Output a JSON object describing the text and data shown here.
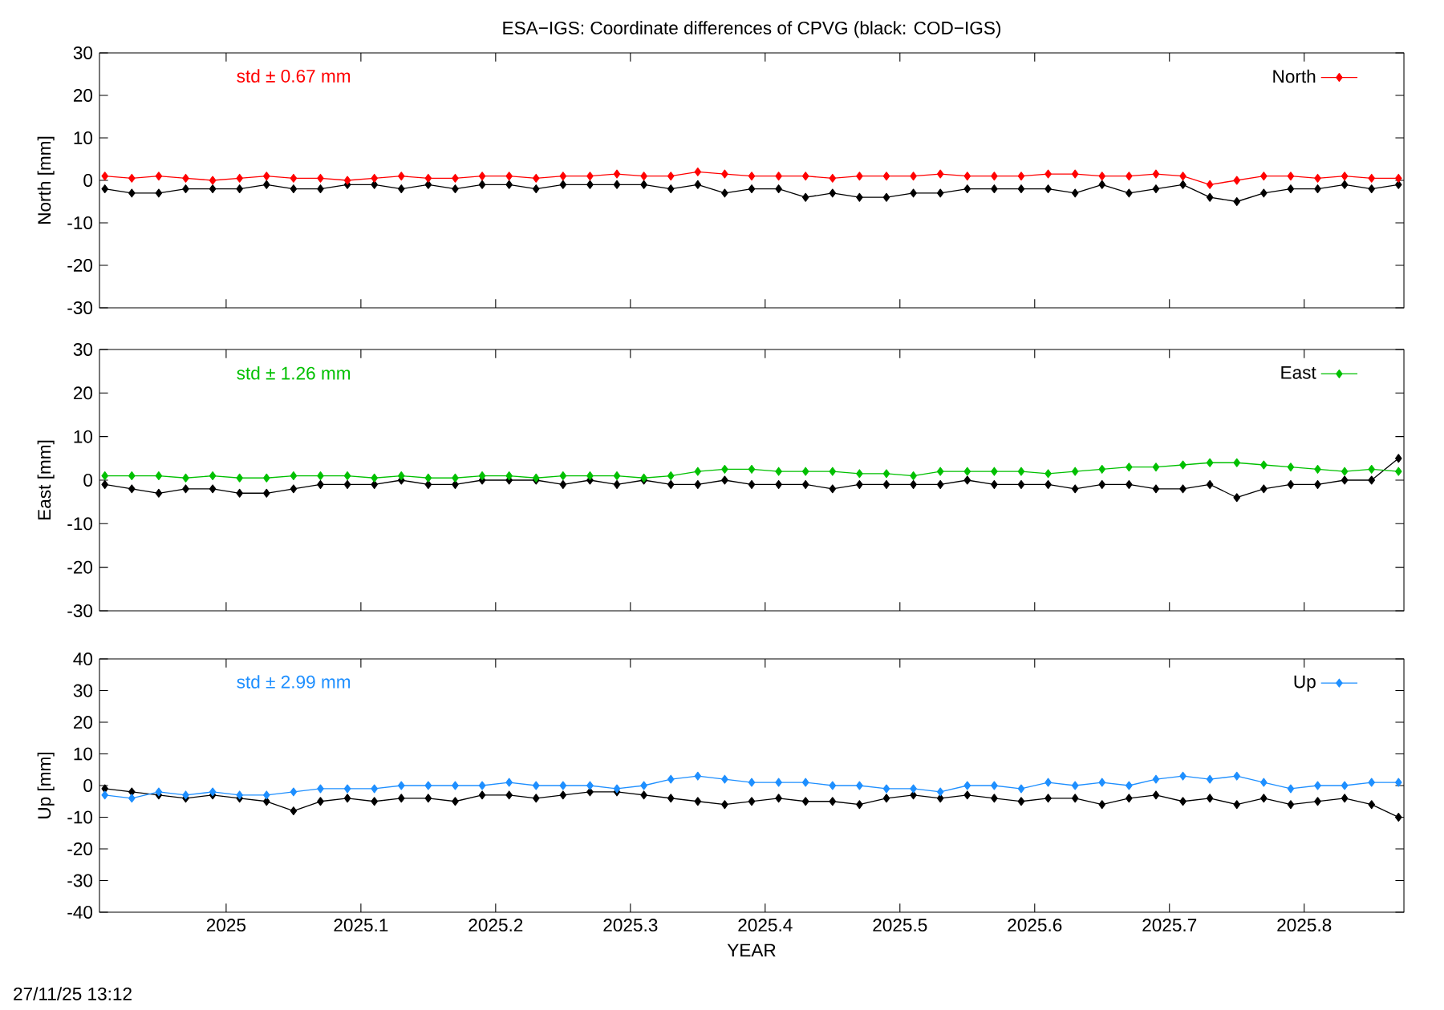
{
  "chart_data": [
    {
      "type": "line",
      "title": "ESA−IGS: Coordinate differences of CPVG (black: COD−IGS)",
      "ylabel": "North [mm]",
      "annotations": [
        "std ± 0.67 mm"
      ],
      "legend": "top right",
      "marker": "diamond",
      "tick_labels": "y",
      "grid": false,
      "x": [
        2024.91,
        2024.93,
        2024.95,
        2024.97,
        2024.99,
        2025.01,
        2025.03,
        2025.05,
        2025.07,
        2025.09,
        2025.11,
        2025.13,
        2025.15,
        2025.17,
        2025.19,
        2025.21,
        2025.23,
        2025.25,
        2025.27,
        2025.29,
        2025.31,
        2025.33,
        2025.35,
        2025.37,
        2025.39,
        2025.41,
        2025.43,
        2025.45,
        2025.47,
        2025.49,
        2025.51,
        2025.53,
        2025.55,
        2025.57,
        2025.59,
        2025.61,
        2025.63,
        2025.65,
        2025.67,
        2025.69,
        2025.71,
        2025.73,
        2025.75,
        2025.77,
        2025.79,
        2025.81,
        2025.83,
        2025.85,
        2025.87
      ],
      "xlim": [
        2024.906,
        2025.874
      ],
      "xticks": [
        2025,
        2025.1,
        2025.2,
        2025.3,
        2025.4,
        2025.5,
        2025.6,
        2025.7,
        2025.8
      ],
      "ylim": [
        -30,
        30
      ],
      "yticks": [
        -30,
        -20,
        -10,
        0,
        10,
        20,
        30
      ],
      "series": [
        {
          "color": "#000000",
          "values": [
            -2,
            -3,
            -3,
            -2,
            -2,
            -2,
            -1,
            -2,
            -2,
            -1,
            -1,
            -2,
            -1,
            -2,
            -1,
            -1,
            -2,
            -1,
            -1,
            -1,
            -1,
            -2,
            -1,
            -3,
            -2,
            -2,
            -4,
            -3,
            -4,
            -4,
            -3,
            -3,
            -2,
            -2,
            -2,
            -2,
            -3,
            -1,
            -3,
            -2,
            -1,
            -4,
            -5,
            -3,
            -2,
            -2,
            -1,
            -2,
            -1
          ]
        },
        {
          "name": "North",
          "color": "#ff0000",
          "values": [
            1,
            0.5,
            1,
            0.5,
            0,
            0.5,
            1,
            0.5,
            0.5,
            0,
            0.5,
            1,
            0.5,
            0.5,
            1,
            1,
            0.5,
            1,
            1,
            1.5,
            1,
            1,
            2,
            1.5,
            1,
            1,
            1,
            0.5,
            1,
            1,
            1,
            1.5,
            1,
            1,
            1,
            1.5,
            1.5,
            1,
            1,
            1.5,
            1,
            -1,
            0,
            1,
            1,
            0.5,
            1,
            0.5,
            0.5
          ]
        }
      ]
    },
    {
      "type": "line",
      "ylabel": "East [mm]",
      "annotations": [
        "std ± 1.26 mm"
      ],
      "legend": "top right",
      "marker": "diamond",
      "tick_labels": "y",
      "grid": false,
      "x": [
        2024.91,
        2024.93,
        2024.95,
        2024.97,
        2024.99,
        2025.01,
        2025.03,
        2025.05,
        2025.07,
        2025.09,
        2025.11,
        2025.13,
        2025.15,
        2025.17,
        2025.19,
        2025.21,
        2025.23,
        2025.25,
        2025.27,
        2025.29,
        2025.31,
        2025.33,
        2025.35,
        2025.37,
        2025.39,
        2025.41,
        2025.43,
        2025.45,
        2025.47,
        2025.49,
        2025.51,
        2025.53,
        2025.55,
        2025.57,
        2025.59,
        2025.61,
        2025.63,
        2025.65,
        2025.67,
        2025.69,
        2025.71,
        2025.73,
        2025.75,
        2025.77,
        2025.79,
        2025.81,
        2025.83,
        2025.85,
        2025.87
      ],
      "xlim": [
        2024.906,
        2025.874
      ],
      "xticks": [
        2025,
        2025.1,
        2025.2,
        2025.3,
        2025.4,
        2025.5,
        2025.6,
        2025.7,
        2025.8
      ],
      "ylim": [
        -30,
        30
      ],
      "yticks": [
        -30,
        -20,
        -10,
        0,
        10,
        20,
        30
      ],
      "series": [
        {
          "color": "#000000",
          "values": [
            -1,
            -2,
            -3,
            -2,
            -2,
            -3,
            -3,
            -2,
            -1,
            -1,
            -1,
            0,
            -1,
            -1,
            0,
            0,
            0,
            -1,
            0,
            -1,
            0,
            -1,
            -1,
            0,
            -1,
            -1,
            -1,
            -2,
            -1,
            -1,
            -1,
            -1,
            0,
            -1,
            -1,
            -1,
            -2,
            -1,
            -1,
            -2,
            -2,
            -1,
            -4,
            -2,
            -1,
            -1,
            0,
            0,
            5
          ]
        },
        {
          "name": "East",
          "color": "#00c000",
          "values": [
            1,
            1,
            1,
            0.5,
            1,
            0.5,
            0.5,
            1,
            1,
            1,
            0.5,
            1,
            0.5,
            0.5,
            1,
            1,
            0.5,
            1,
            1,
            1,
            0.5,
            1,
            2,
            2.5,
            2.5,
            2,
            2,
            2,
            1.5,
            1.5,
            1,
            2,
            2,
            2,
            2,
            1.5,
            2,
            2.5,
            3,
            3,
            3.5,
            4,
            4,
            3.5,
            3,
            2.5,
            2,
            2.5,
            2
          ]
        }
      ]
    },
    {
      "type": "line",
      "xlabel": "YEAR",
      "ylabel": "Up [mm]",
      "annotations": [
        "std ± 2.99 mm",
        "27/11/25 13:12"
      ],
      "legend": "top right",
      "marker": "diamond",
      "grid": false,
      "x": [
        2024.91,
        2024.93,
        2024.95,
        2024.97,
        2024.99,
        2025.01,
        2025.03,
        2025.05,
        2025.07,
        2025.09,
        2025.11,
        2025.13,
        2025.15,
        2025.17,
        2025.19,
        2025.21,
        2025.23,
        2025.25,
        2025.27,
        2025.29,
        2025.31,
        2025.33,
        2025.35,
        2025.37,
        2025.39,
        2025.41,
        2025.43,
        2025.45,
        2025.47,
        2025.49,
        2025.51,
        2025.53,
        2025.55,
        2025.57,
        2025.59,
        2025.61,
        2025.63,
        2025.65,
        2025.67,
        2025.69,
        2025.71,
        2025.73,
        2025.75,
        2025.77,
        2025.79,
        2025.81,
        2025.83,
        2025.85,
        2025.87
      ],
      "xlim": [
        2024.906,
        2025.874
      ],
      "xticks": [
        2025,
        2025.1,
        2025.2,
        2025.3,
        2025.4,
        2025.5,
        2025.6,
        2025.7,
        2025.8
      ],
      "ylim": [
        -40,
        40
      ],
      "yticks": [
        -40,
        -30,
        -20,
        -10,
        0,
        10,
        20,
        30,
        40
      ],
      "series": [
        {
          "color": "#000000",
          "values": [
            -1,
            -2,
            -3,
            -4,
            -3,
            -4,
            -5,
            -8,
            -5,
            -4,
            -5,
            -4,
            -4,
            -5,
            -3,
            -3,
            -4,
            -3,
            -2,
            -2,
            -3,
            -4,
            -5,
            -6,
            -5,
            -4,
            -5,
            -5,
            -6,
            -4,
            -3,
            -4,
            -3,
            -4,
            -5,
            -4,
            -4,
            -6,
            -4,
            -3,
            -5,
            -4,
            -6,
            -4,
            -6,
            -5,
            -4,
            -6,
            -10
          ]
        },
        {
          "name": "Up",
          "color": "#1e8fff",
          "values": [
            -3,
            -4,
            -2,
            -3,
            -2,
            -3,
            -3,
            -2,
            -1,
            -1,
            -1,
            0,
            0,
            0,
            0,
            1,
            0,
            0,
            0,
            -1,
            0,
            2,
            3,
            2,
            1,
            1,
            1,
            0,
            0,
            -1,
            -1,
            -2,
            0,
            0,
            -1,
            1,
            0,
            1,
            0,
            2,
            3,
            2,
            3,
            1,
            -1,
            0,
            0,
            1,
            1
          ]
        }
      ]
    }
  ]
}
